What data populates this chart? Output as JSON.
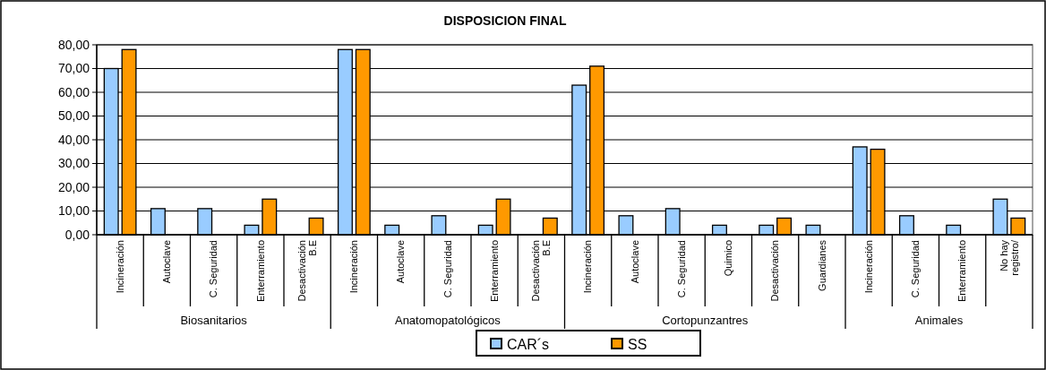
{
  "chart_data": {
    "type": "bar",
    "title": "DISPOSICION FINAL",
    "categories": [
      "Incineración",
      "Autoclave",
      "C. Seguridad",
      "Enterramiento",
      "Desactivación\nB.E",
      "Incineración",
      "Autoclave",
      "C. Seguridad",
      "Enterramiento",
      "Desactivación\nB.E",
      "Incineración",
      "Autoclave",
      "C. Seguridad",
      "Quimico",
      "Desactivación",
      "Guardianes",
      "Incineración",
      "C. Seguridad",
      "Enterramiento",
      "No hay\nregistro/"
    ],
    "series": [
      {
        "name": "CAR´s",
        "color": "#99ccff",
        "values": [
          70,
          11,
          11,
          4,
          null,
          78,
          4,
          8,
          4,
          null,
          63,
          8,
          11,
          4,
          4,
          4,
          37,
          8,
          4,
          15
        ]
      },
      {
        "name": "SS",
        "color": "#ff9900",
        "values": [
          78,
          null,
          null,
          15,
          7,
          78,
          null,
          null,
          15,
          7,
          71,
          null,
          null,
          null,
          7,
          null,
          36,
          null,
          null,
          7
        ]
      }
    ],
    "annotations": [
      "Biosanitarios",
      "Anatomopatológicos",
      "Cortopunzantres",
      "Animales"
    ],
    "ylim": [
      0,
      80
    ],
    "yticks": [
      {
        "value": 0,
        "label": "0,00"
      },
      {
        "value": 10,
        "label": "10,00"
      },
      {
        "value": 20,
        "label": "20,00"
      },
      {
        "value": 30,
        "label": "30,00"
      },
      {
        "value": 40,
        "label": "40,00"
      },
      {
        "value": 50,
        "label": "50,00"
      },
      {
        "value": 60,
        "label": "60,00"
      },
      {
        "value": 70,
        "label": "70,00"
      },
      {
        "value": 80,
        "label": "80,00"
      }
    ],
    "grid": "y",
    "legend": "bottom"
  }
}
